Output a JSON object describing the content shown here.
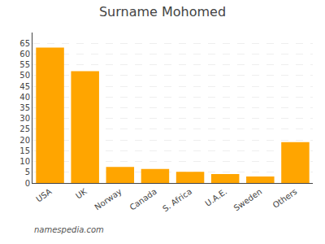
{
  "chart_data": {
    "type": "bar",
    "title": "Surname Mohomed",
    "categories": [
      "USA",
      "UK",
      "Norway",
      "Canada",
      "S. Africa",
      "U.A.E.",
      "Sweden",
      "Others"
    ],
    "values": [
      63,
      52,
      7.5,
      6.5,
      5.2,
      4.2,
      3.0,
      19
    ],
    "color": "#FFA500",
    "ylim": [
      0,
      70
    ],
    "yticks": [
      0,
      5,
      10,
      15,
      20,
      25,
      30,
      35,
      40,
      45,
      50,
      55,
      60,
      65
    ],
    "grid": true,
    "annotations": [
      "namespedia.com"
    ]
  }
}
